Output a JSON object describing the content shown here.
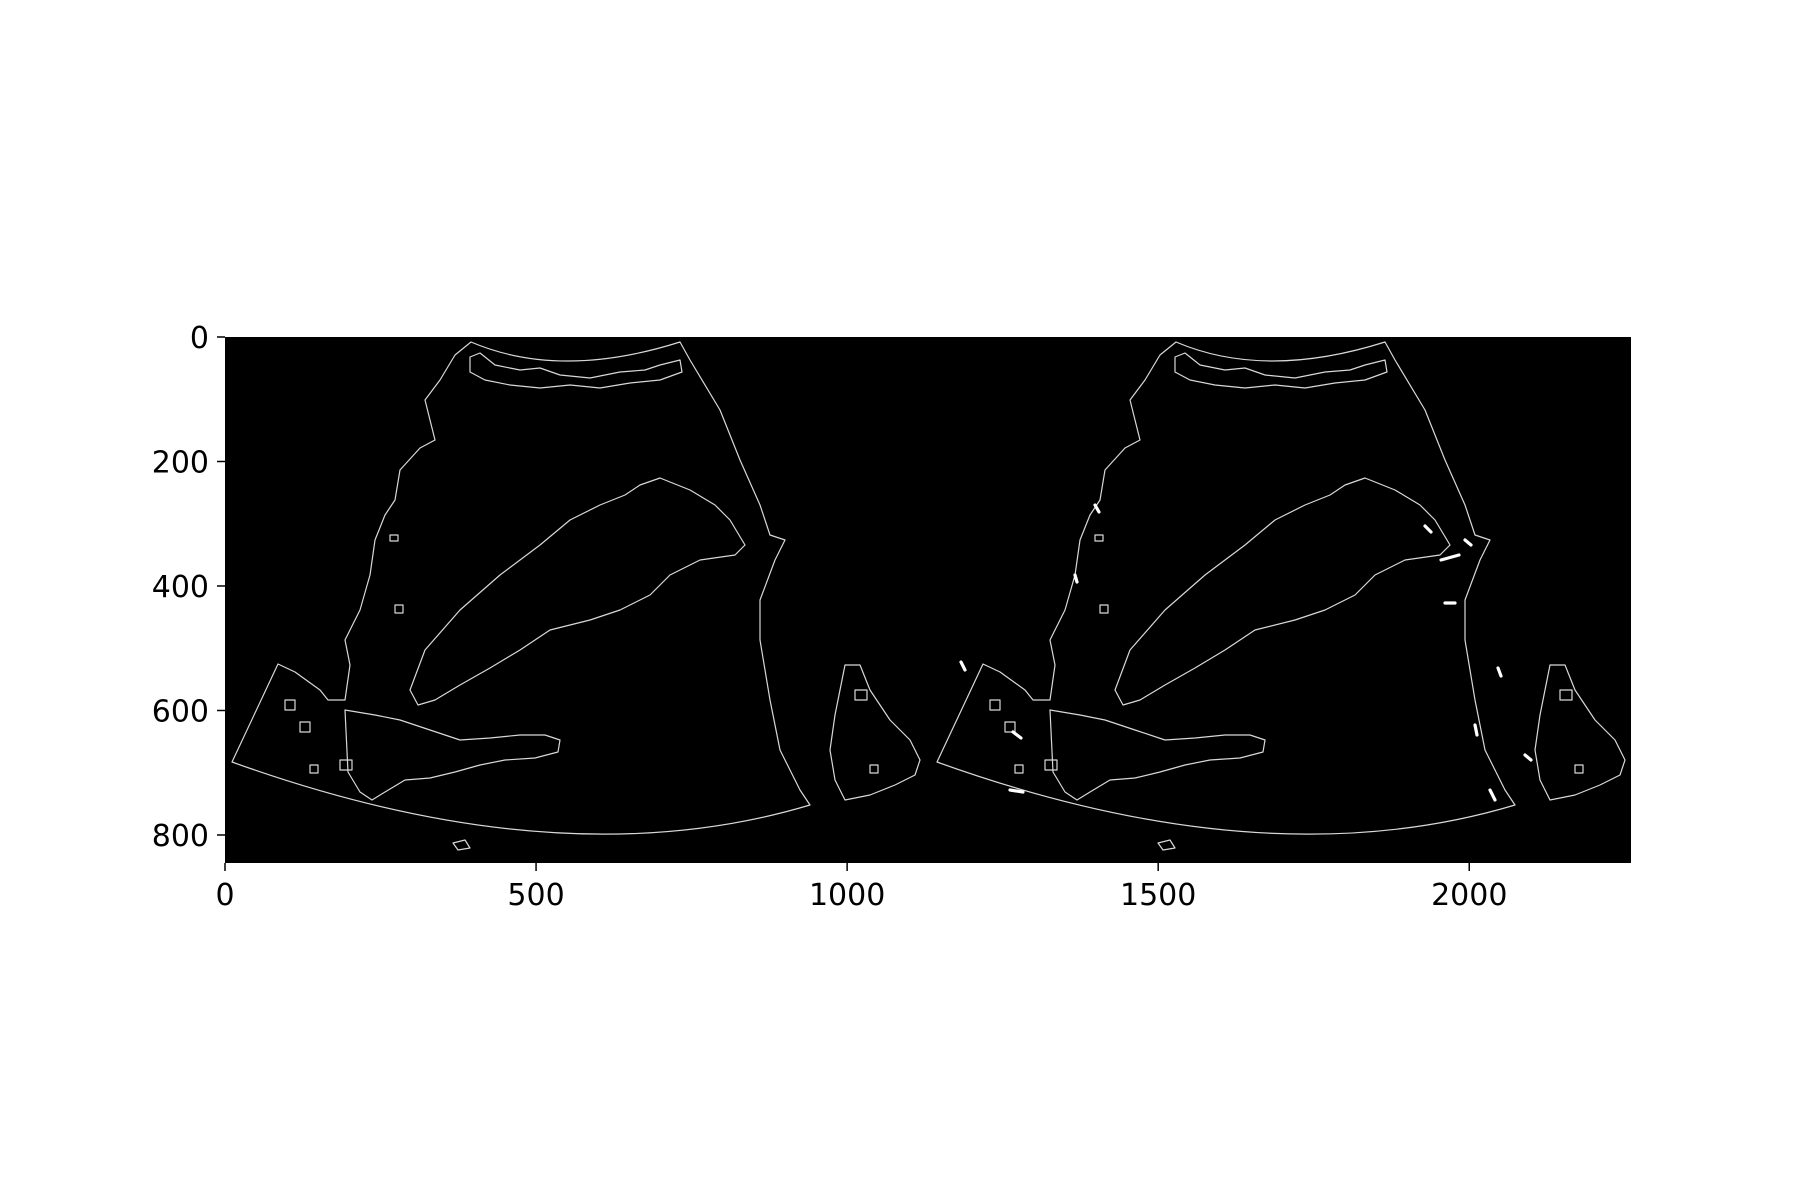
{
  "figure": {
    "image_extent": {
      "x": [
        0,
        2260
      ],
      "y": [
        0,
        845
      ]
    },
    "x_ticks": [
      0,
      500,
      1000,
      1500,
      2000
    ],
    "x_tick_labels": [
      "0",
      "500",
      "1000",
      "1500",
      "2000"
    ],
    "y_ticks": [
      0,
      200,
      400,
      600,
      800
    ],
    "y_tick_labels": [
      "0",
      "200",
      "400",
      "600",
      "800"
    ],
    "colors": {
      "background": "#000000",
      "edges": "#d8d8d8",
      "highlight": "#ffffff",
      "page": "#ffffff"
    },
    "panels": [
      "left-edge-map",
      "right-edge-map-with-highlights"
    ]
  }
}
